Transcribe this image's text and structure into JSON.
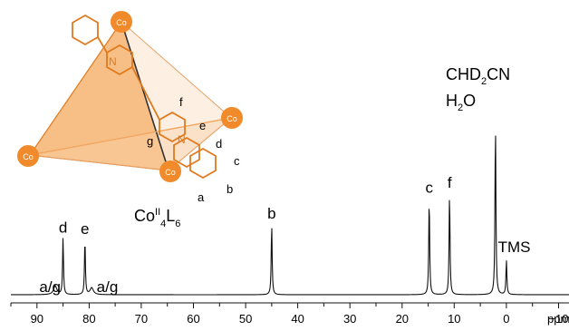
{
  "chart_data": {
    "type": "line",
    "x_unit": "ppm",
    "xlim": [
      95,
      -12
    ],
    "x_ticks": [
      90,
      80,
      70,
      60,
      50,
      40,
      30,
      20,
      10,
      0,
      -10
    ],
    "peaks": [
      {
        "label": "a/g",
        "ppm": 86.5,
        "height": 0.05
      },
      {
        "label": "d",
        "ppm": 85.0,
        "height": 0.33
      },
      {
        "label": "e",
        "ppm": 80.8,
        "height": 0.32
      },
      {
        "label": "a/g",
        "ppm": 79.5,
        "height": 0.04
      },
      {
        "label": "b",
        "ppm": 45.0,
        "height": 0.41
      },
      {
        "label": "c",
        "ppm": 14.8,
        "height": 0.56
      },
      {
        "label": "f",
        "ppm": 10.9,
        "height": 0.59
      },
      {
        "label": "CHD2CN / H2O",
        "ppm": 2.1,
        "height": 1.0
      },
      {
        "label": "TMS",
        "ppm": 0.0,
        "height": 0.2
      }
    ],
    "peak_labels": [
      {
        "text": "a/g",
        "ppm": 87.5
      },
      {
        "text": "d",
        "ppm": 85.0
      },
      {
        "text": "e",
        "ppm": 80.8
      },
      {
        "text": "a/g",
        "ppm": 76.5
      },
      {
        "text": "b",
        "ppm": 45.0
      },
      {
        "text": "c",
        "ppm": 14.8
      },
      {
        "text": "f",
        "ppm": 10.9
      },
      {
        "text": "TMS",
        "ppm": -1.5
      }
    ],
    "solvent_label_line1": "CHD",
    "solvent_label_sub": "2",
    "solvent_label_line1_end": "CN",
    "solvent_label_line2": "H",
    "solvent_label_line2_sub": "2",
    "solvent_label_line2_end": "O"
  },
  "compound_label": {
    "prefix": "Co",
    "sup": "II",
    "sub1": "4",
    "mid": "L",
    "sub2": "6"
  },
  "structure": {
    "co_label": "Co",
    "n_label": "N",
    "ligand_labels": [
      "a",
      "b",
      "c",
      "d",
      "e",
      "f",
      "g"
    ]
  },
  "colors": {
    "accent": "#f08a2a",
    "accent_fill": "#f6b26b",
    "spectrum": "#111111"
  }
}
